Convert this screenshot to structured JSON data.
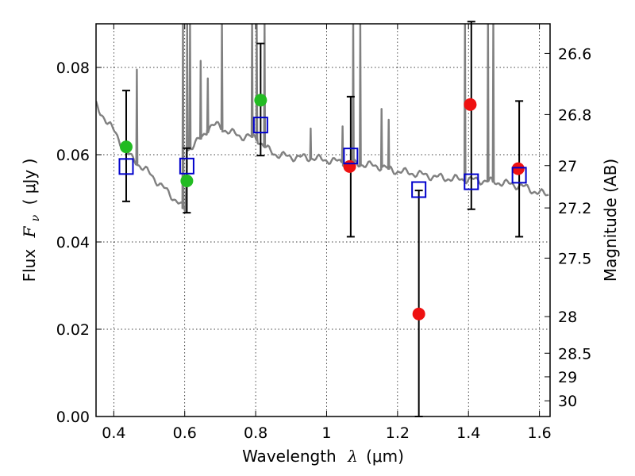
{
  "chart_data": {
    "type": "scatter",
    "xlabel": "Wavelength",
    "xlabel_symbol": "λ",
    "xlabel_unit": "(μm)",
    "ylabel": "Flux",
    "ylabel_symbol": "F",
    "ylabel_subscript": "ν",
    "ylabel_unit": "( μJy )",
    "y2label": "Magnitude (AB)",
    "xlim": [
      0.35,
      1.63
    ],
    "ylim": [
      0.0,
      0.09
    ],
    "grid": true,
    "x_ticks": [
      0.4,
      0.6,
      0.8,
      1.0,
      1.2,
      1.4,
      1.6
    ],
    "x_tick_labels": [
      "0.4",
      "0.6",
      "0.8",
      "1",
      "1.2",
      "1.4",
      "1.6"
    ],
    "y_ticks": [
      0.0,
      0.02,
      0.04,
      0.06,
      0.08
    ],
    "y_tick_labels": [
      "0.00",
      "0.02",
      "0.04",
      "0.06",
      "0.08"
    ],
    "y2_ticks": [
      {
        "label": "26.6",
        "flux": 0.0832
      },
      {
        "label": "26.8",
        "flux": 0.0692
      },
      {
        "label": "27",
        "flux": 0.0575
      },
      {
        "label": "27.2",
        "flux": 0.0478
      },
      {
        "label": "27.5",
        "flux": 0.0363
      },
      {
        "label": "28",
        "flux": 0.0229
      },
      {
        "label": "28.5",
        "flux": 0.0145
      },
      {
        "label": "29",
        "flux": 0.0091
      },
      {
        "label": "30",
        "flux": 0.0036
      }
    ],
    "colors": {
      "detected": "#22bb22",
      "upper": "#ee1111",
      "model": "#0000cc",
      "spectrum": "#808080",
      "errorbar": "#000000"
    },
    "series": [
      {
        "kind": "observed_detected",
        "points": [
          {
            "x": 0.435,
            "y": 0.0618
          },
          {
            "x": 0.606,
            "y": 0.054
          },
          {
            "x": 0.814,
            "y": 0.0725
          }
        ]
      },
      {
        "kind": "observed_upper",
        "points": [
          {
            "x": 1.065,
            "y": 0.0573
          },
          {
            "x": 1.26,
            "y": 0.0235
          },
          {
            "x": 1.405,
            "y": 0.0715
          },
          {
            "x": 1.54,
            "y": 0.0568
          }
        ]
      },
      {
        "kind": "model_photometry",
        "points": [
          {
            "x": 0.435,
            "y": 0.0573,
            "err_lo": 0.0493,
            "err_hi": 0.0747
          },
          {
            "x": 0.606,
            "y": 0.0574,
            "err_lo": 0.0467,
            "err_hi": 0.0615
          },
          {
            "x": 0.814,
            "y": 0.0668,
            "err_lo": 0.0598,
            "err_hi": 0.0855
          },
          {
            "x": 1.068,
            "y": 0.0597,
            "err_lo": 0.0412,
            "err_hi": 0.0733
          },
          {
            "x": 1.26,
            "y": 0.052,
            "err_lo": 0.0,
            "err_hi": 0.0518
          },
          {
            "x": 1.408,
            "y": 0.0538,
            "err_lo": 0.0475,
            "err_hi": 0.0905
          },
          {
            "x": 1.543,
            "y": 0.0553,
            "err_lo": 0.0412,
            "err_hi": 0.0723
          }
        ]
      }
    ],
    "spectrum": {
      "continuum": [
        [
          0.35,
          0.0713
        ],
        [
          0.36,
          0.0695
        ],
        [
          0.375,
          0.0685
        ],
        [
          0.39,
          0.0668
        ],
        [
          0.41,
          0.064
        ],
        [
          0.43,
          0.0612
        ],
        [
          0.45,
          0.0592
        ],
        [
          0.47,
          0.0578
        ],
        [
          0.5,
          0.0558
        ],
        [
          0.53,
          0.0532
        ],
        [
          0.56,
          0.0508
        ],
        [
          0.585,
          0.0488
        ],
        [
          0.6,
          0.0472
        ],
        [
          0.603,
          0.0468
        ],
        [
          0.607,
          0.061
        ],
        [
          0.63,
          0.0627
        ],
        [
          0.65,
          0.064
        ],
        [
          0.67,
          0.0665
        ],
        [
          0.69,
          0.0668
        ],
        [
          0.72,
          0.0654
        ],
        [
          0.76,
          0.0642
        ],
        [
          0.8,
          0.064
        ],
        [
          0.83,
          0.0614
        ],
        [
          0.86,
          0.06
        ],
        [
          0.9,
          0.0595
        ],
        [
          0.95,
          0.0593
        ],
        [
          1.0,
          0.0588
        ],
        [
          1.05,
          0.0582
        ],
        [
          1.1,
          0.0578
        ],
        [
          1.15,
          0.0573
        ],
        [
          1.2,
          0.0562
        ],
        [
          1.25,
          0.0557
        ],
        [
          1.3,
          0.055
        ],
        [
          1.35,
          0.0545
        ],
        [
          1.4,
          0.0543
        ],
        [
          1.45,
          0.054
        ],
        [
          1.5,
          0.0535
        ],
        [
          1.55,
          0.0528
        ],
        [
          1.6,
          0.0512
        ],
        [
          1.63,
          0.0508
        ]
      ],
      "lines": [
        {
          "x": 0.44,
          "peak": 0.0625
        },
        {
          "x": 0.465,
          "peak": 0.0795
        },
        {
          "x": 0.595,
          "peak": 0.0905
        },
        {
          "x": 0.607,
          "peak": 0.0905
        },
        {
          "x": 0.615,
          "peak": 0.0905
        },
        {
          "x": 0.645,
          "peak": 0.0815
        },
        {
          "x": 0.665,
          "peak": 0.0775
        },
        {
          "x": 0.705,
          "peak": 0.0905
        },
        {
          "x": 0.79,
          "peak": 0.0905
        },
        {
          "x": 0.803,
          "peak": 0.0905
        },
        {
          "x": 0.825,
          "peak": 0.0905
        },
        {
          "x": 0.955,
          "peak": 0.066
        },
        {
          "x": 1.045,
          "peak": 0.0665
        },
        {
          "x": 1.075,
          "peak": 0.0905
        },
        {
          "x": 1.095,
          "peak": 0.0905
        },
        {
          "x": 1.155,
          "peak": 0.0705
        },
        {
          "x": 1.175,
          "peak": 0.068
        },
        {
          "x": 1.39,
          "peak": 0.0905
        },
        {
          "x": 1.455,
          "peak": 0.0905
        },
        {
          "x": 1.47,
          "peak": 0.0905
        }
      ]
    }
  }
}
